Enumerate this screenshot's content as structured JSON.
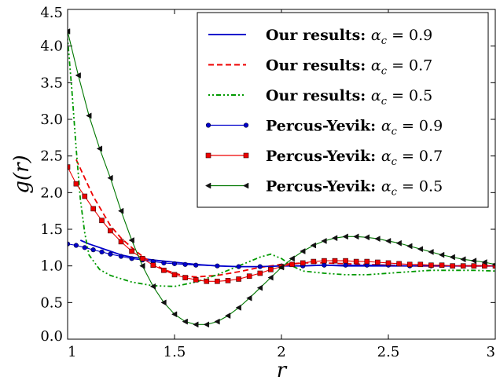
{
  "chart_data": {
    "type": "line",
    "xlabel": "r",
    "ylabel": "g(r)",
    "xlim": [
      1,
      3
    ],
    "ylim": [
      0,
      4.5
    ],
    "x_ticks": [
      "1",
      "1.5",
      "2",
      "2.5",
      "3"
    ],
    "y_ticks": [
      "0.0",
      "0.5",
      "1.0",
      "1.5",
      "2.0",
      "2.5",
      "3.0",
      "3.5",
      "4.0",
      "4.5"
    ],
    "legend_position": "top-right",
    "series": [
      {
        "name": "Our results: α_c = 0.9",
        "label_bold": "Our results:",
        "label_math": "α",
        "label_sub": "c",
        "label_value": " = 0.9",
        "color": "#0000cc",
        "dash": "solid",
        "marker": "none",
        "x": [
          1.06,
          1.1,
          1.15,
          1.2,
          1.25,
          1.3,
          1.4,
          1.5,
          1.6,
          1.7,
          1.8,
          1.9,
          2.0,
          2.1,
          2.2,
          2.3,
          2.4,
          2.5,
          2.6,
          2.7,
          2.8,
          2.9,
          3.0
        ],
        "y": [
          1.35,
          1.3,
          1.25,
          1.2,
          1.15,
          1.12,
          1.08,
          1.05,
          1.02,
          1.0,
          0.99,
          0.99,
          1.0,
          1.0,
          1.01,
          1.0,
          1.0,
          1.0,
          1.0,
          1.0,
          1.0,
          1.0,
          1.0
        ]
      },
      {
        "name": "Our results: α_c = 0.7",
        "label_bold": "Our results:",
        "label_math": "α",
        "label_sub": "c",
        "label_value": " = 0.7",
        "color": "#ee0000",
        "dash": "dashed",
        "marker": "none",
        "x": [
          1.04,
          1.08,
          1.12,
          1.16,
          1.2,
          1.25,
          1.3,
          1.35,
          1.4,
          1.45,
          1.5,
          1.55,
          1.6,
          1.7,
          1.8,
          1.9,
          2.0,
          2.1,
          2.2,
          2.3,
          2.4,
          2.5,
          2.6,
          2.7,
          2.8,
          2.9,
          3.0
        ],
        "y": [
          2.45,
          2.2,
          1.95,
          1.75,
          1.55,
          1.38,
          1.25,
          1.13,
          1.03,
          0.95,
          0.9,
          0.86,
          0.85,
          0.87,
          0.92,
          0.98,
          1.02,
          1.04,
          1.04,
          1.03,
          1.02,
          1.01,
          1.0,
          1.0,
          1.0,
          1.0,
          1.0
        ]
      },
      {
        "name": "Our results: α_c = 0.5",
        "label_bold": "Our results:",
        "label_math": "α",
        "label_sub": "c",
        "label_value": " = 0.5",
        "color": "#009900",
        "dash": "dashdot",
        "marker": "none",
        "x": [
          1.0,
          1.02,
          1.04,
          1.06,
          1.08,
          1.1,
          1.15,
          1.2,
          1.3,
          1.4,
          1.5,
          1.6,
          1.7,
          1.8,
          1.9,
          1.95,
          2.0,
          2.05,
          2.1,
          2.2,
          2.3,
          2.4,
          2.5,
          2.6,
          2.7,
          2.8,
          2.9,
          3.0
        ],
        "y": [
          4.1,
          3.4,
          2.6,
          1.9,
          1.45,
          1.15,
          0.95,
          0.87,
          0.78,
          0.73,
          0.72,
          0.78,
          0.88,
          1.0,
          1.12,
          1.16,
          1.1,
          1.0,
          0.93,
          0.9,
          0.88,
          0.88,
          0.9,
          0.92,
          0.94,
          0.94,
          0.94,
          0.93
        ]
      },
      {
        "name": "Percus-Yevik: α_c = 0.9",
        "label_bold": "Percus-Yevik:",
        "label_math": "α",
        "label_sub": "c",
        "label_value": " = 0.9",
        "color": "#0000cc",
        "dash": "solid",
        "marker": "circle",
        "x": [
          1.0,
          1.04,
          1.08,
          1.12,
          1.16,
          1.2,
          1.25,
          1.3,
          1.35,
          1.4,
          1.45,
          1.5,
          1.55,
          1.6,
          1.7,
          1.8,
          1.9,
          2.0,
          2.1,
          2.2,
          2.3,
          2.4,
          2.5,
          2.6,
          2.7,
          2.8,
          2.9,
          3.0
        ],
        "y": [
          1.3,
          1.28,
          1.25,
          1.22,
          1.19,
          1.16,
          1.13,
          1.1,
          1.08,
          1.06,
          1.04,
          1.03,
          1.02,
          1.01,
          1.0,
          0.99,
          0.99,
          1.0,
          1.0,
          1.01,
          1.01,
          1.01,
          1.01,
          1.0,
          1.0,
          1.0,
          1.0,
          1.0
        ]
      },
      {
        "name": "Percus-Yevik: α_c = 0.7",
        "label_bold": "Percus-Yevik:",
        "label_math": "α",
        "label_sub": "c",
        "label_value": " = 0.7",
        "color": "#ee0000",
        "dash": "solid",
        "marker": "square",
        "x": [
          1.0,
          1.04,
          1.08,
          1.12,
          1.16,
          1.2,
          1.25,
          1.3,
          1.35,
          1.4,
          1.45,
          1.5,
          1.55,
          1.6,
          1.65,
          1.7,
          1.75,
          1.8,
          1.85,
          1.9,
          1.95,
          2.0,
          2.05,
          2.1,
          2.15,
          2.2,
          2.25,
          2.3,
          2.35,
          2.4,
          2.45,
          2.5,
          2.55,
          2.6,
          2.65,
          2.7,
          2.75,
          2.8,
          2.85,
          2.9,
          2.95,
          3.0
        ],
        "y": [
          2.35,
          2.12,
          1.95,
          1.78,
          1.62,
          1.48,
          1.33,
          1.2,
          1.1,
          1.01,
          0.94,
          0.88,
          0.84,
          0.81,
          0.79,
          0.79,
          0.8,
          0.82,
          0.86,
          0.9,
          0.95,
          0.99,
          1.02,
          1.04,
          1.06,
          1.07,
          1.07,
          1.07,
          1.06,
          1.06,
          1.05,
          1.04,
          1.03,
          1.02,
          1.02,
          1.01,
          1.01,
          1.0,
          1.0,
          1.0,
          1.0,
          1.0
        ]
      },
      {
        "name": "Percus-Yevik: α_c = 0.5",
        "label_bold": "Percus-Yevik:",
        "label_math": "α",
        "label_sub": "c",
        "label_value": " = 0.5",
        "color": "#007700",
        "dash": "solid",
        "marker": "triangle-left",
        "x": [
          1.0,
          1.05,
          1.1,
          1.15,
          1.2,
          1.25,
          1.3,
          1.35,
          1.4,
          1.45,
          1.5,
          1.55,
          1.6,
          1.65,
          1.7,
          1.75,
          1.8,
          1.85,
          1.9,
          1.95,
          2.0,
          2.05,
          2.1,
          2.15,
          2.2,
          2.25,
          2.3,
          2.35,
          2.4,
          2.45,
          2.5,
          2.55,
          2.6,
          2.65,
          2.7,
          2.75,
          2.8,
          2.85,
          2.9,
          2.95,
          3.0
        ],
        "y": [
          4.2,
          3.6,
          3.05,
          2.6,
          2.2,
          1.75,
          1.35,
          1.0,
          0.72,
          0.5,
          0.34,
          0.24,
          0.2,
          0.2,
          0.24,
          0.32,
          0.43,
          0.56,
          0.7,
          0.84,
          0.98,
          1.1,
          1.2,
          1.28,
          1.34,
          1.38,
          1.4,
          1.4,
          1.39,
          1.37,
          1.34,
          1.31,
          1.27,
          1.23,
          1.19,
          1.15,
          1.12,
          1.09,
          1.07,
          1.05,
          1.02
        ]
      }
    ]
  }
}
